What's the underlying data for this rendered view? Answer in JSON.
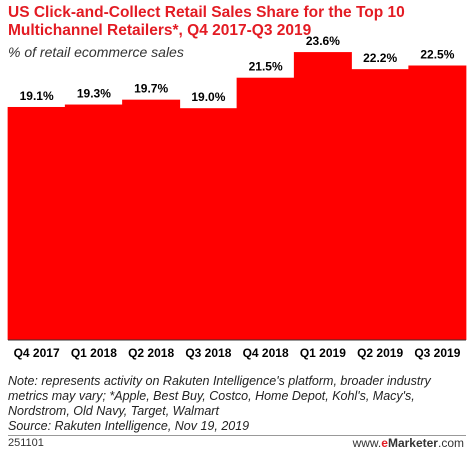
{
  "header": {
    "title": "US Click-and-Collect Retail Sales Share for the Top 10 Multichannel Retailers*, Q4 2017-Q3 2019",
    "subtitle": "% of retail ecommerce sales"
  },
  "chart_data": {
    "type": "bar",
    "categories": [
      "Q4 2017",
      "Q1 2018",
      "Q2 2018",
      "Q3 2018",
      "Q4 2018",
      "Q1 2019",
      "Q2 2019",
      "Q3 2019"
    ],
    "values": [
      19.1,
      19.3,
      19.7,
      19.0,
      21.5,
      23.6,
      22.2,
      22.5
    ],
    "value_labels": [
      "19.1%",
      "19.3%",
      "19.7%",
      "19.0%",
      "21.5%",
      "23.6%",
      "22.2%",
      "22.5%"
    ],
    "ylim": [
      0,
      25
    ],
    "grid": false,
    "bar_color": "#ff0000"
  },
  "footer": {
    "note": "Note: represents activity on Rakuten Intelligence's platform, broader industry metrics may vary; *Apple, Best Buy, Costco, Home Depot, Kohl's, Macy's, Nordstrom, Old Navy, Target, Walmart",
    "source": "Source: Rakuten Intelligence, Nov 19, 2019",
    "id": "251101",
    "brand_prefix": "www.",
    "brand_e": "e",
    "brand_name": "Marketer",
    "brand_suffix": ".com"
  },
  "colors": {
    "title": "#e31b23",
    "bar": "#ff0000"
  }
}
